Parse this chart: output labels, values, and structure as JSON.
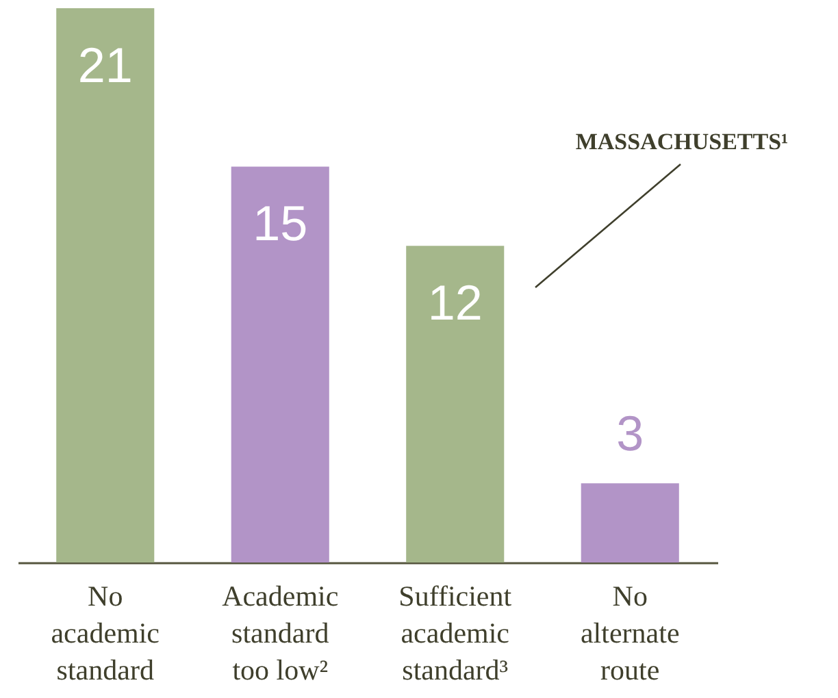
{
  "chart_data": {
    "type": "bar",
    "categories": [
      "No academic standard",
      "Academic standard too low²",
      "Sufficient academic standard³",
      "No alternate route"
    ],
    "values": [
      21,
      15,
      12,
      3
    ],
    "colors": [
      "#a5b78b",
      "#b294c7",
      "#a5b78b",
      "#b294c7"
    ],
    "data_labels": true,
    "annotations": [
      "MASSACHUSETTS¹"
    ]
  }
}
